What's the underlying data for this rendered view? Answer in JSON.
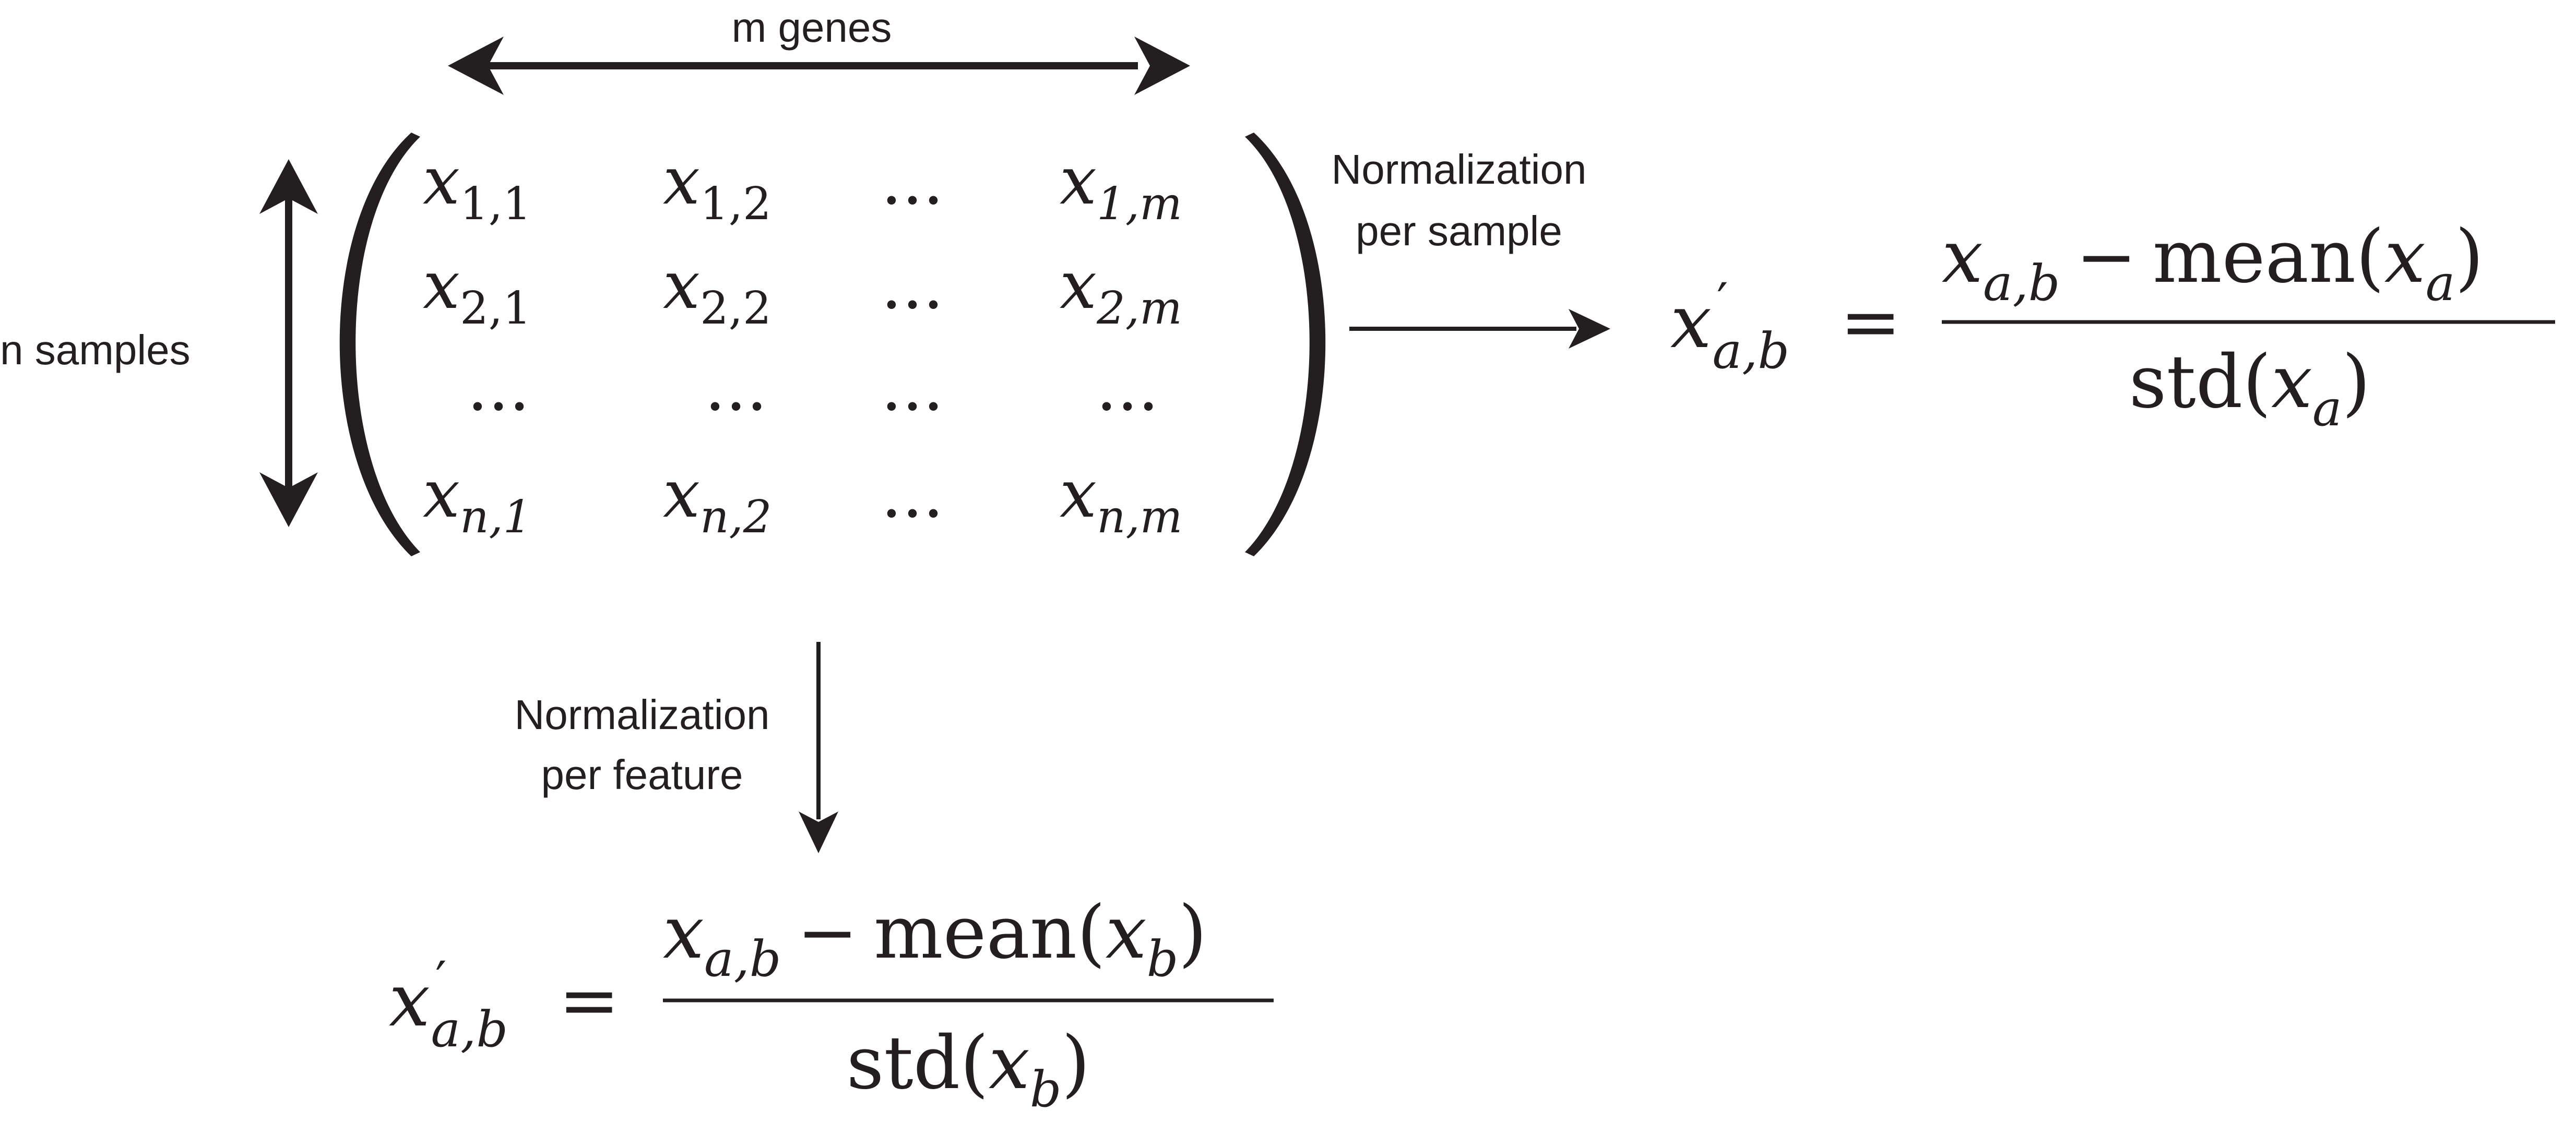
{
  "labels": {
    "m_genes": "m genes",
    "n_samples": "n samples",
    "per_sample_line1": "Normalization",
    "per_sample_line2": "per sample",
    "per_feature_line1": "Normalization",
    "per_feature_line2": "per feature"
  },
  "matrix": {
    "base": "x",
    "ellipsis": "...",
    "rows": [
      [
        "1,1",
        "1,2",
        "...",
        "1,m"
      ],
      [
        "2,1",
        "2,2",
        "...",
        "2,m"
      ],
      [
        "...",
        "...",
        "...",
        "..."
      ],
      [
        "n,1",
        "n,2",
        "...",
        "n,m"
      ]
    ]
  },
  "formula_per_sample": {
    "lhs_base": "x",
    "prime": "′",
    "lhs_sub": "a,b",
    "equals": "=",
    "num_base": "x",
    "num_sub": "a,b",
    "minus": "−",
    "mean": "mean(",
    "mean_arg_base": "x",
    "mean_arg_sub": "a",
    "close": ")",
    "std": "std(",
    "std_arg_base": "x",
    "std_arg_sub": "a"
  },
  "formula_per_feature": {
    "lhs_base": "x",
    "prime": "′",
    "lhs_sub": "a,b",
    "equals": "=",
    "num_base": "x",
    "num_sub": "a,b",
    "minus": "−",
    "mean": "mean(",
    "mean_arg_base": "x",
    "mean_arg_sub": "b",
    "close": ")",
    "std": "std(",
    "std_arg_base": "x",
    "std_arg_sub": "b"
  },
  "colors": {
    "ink": "#231f20",
    "background": "#ffffff"
  }
}
